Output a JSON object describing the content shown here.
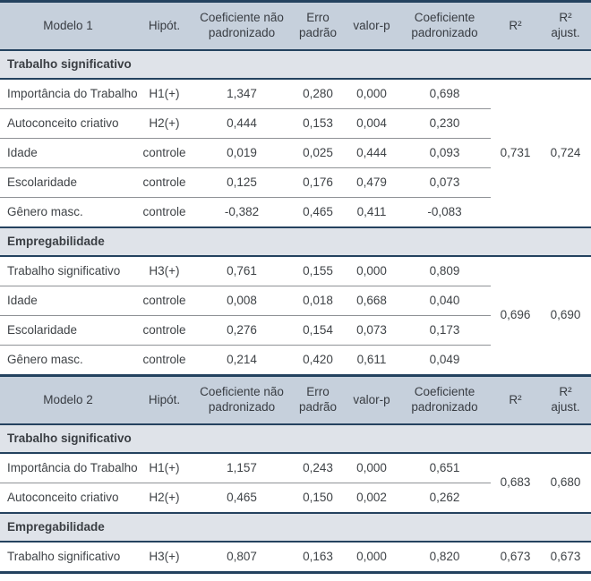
{
  "colors": {
    "border_navy": "#24425f",
    "header_bg": "#c6d0dc",
    "section_bg": "#dfe3e9",
    "row_separator": "#8f9296",
    "text": "#3f4347"
  },
  "column_headers": {
    "hipot": "Hipót.",
    "coef_nao_padronizado": "Coeficiente não padronizado",
    "erro_padrao": "Erro padrão",
    "valor_p": "valor-p",
    "coef_padronizado": "Coeficiente padronizado",
    "r2": "R²",
    "r2_ajust": "R² ajust."
  },
  "model1": {
    "title": "Modelo 1",
    "sections": [
      {
        "name": "Trabalho significativo",
        "r2": "0,731",
        "r2_ajust": "0,724",
        "rows": [
          {
            "label": "Importância do Trabalho",
            "hipot": "H1(+)",
            "coef": "1,347",
            "erro": "0,280",
            "p": "0,000",
            "beta": "0,698"
          },
          {
            "label": "Autoconceito criativo",
            "hipot": "H2(+)",
            "coef": "0,444",
            "erro": "0,153",
            "p": "0,004",
            "beta": "0,230"
          },
          {
            "label": "Idade",
            "hipot": "controle",
            "coef": "0,019",
            "erro": "0,025",
            "p": "0,444",
            "beta": "0,093"
          },
          {
            "label": "Escolaridade",
            "hipot": "controle",
            "coef": "0,125",
            "erro": "0,176",
            "p": "0,479",
            "beta": "0,073"
          },
          {
            "label": "Gênero masc.",
            "hipot": "controle",
            "coef": "-0,382",
            "erro": "0,465",
            "p": "0,411",
            "beta": "-0,083"
          }
        ]
      },
      {
        "name": "Empregabilidade",
        "r2": "0,696",
        "r2_ajust": "0,690",
        "rows": [
          {
            "label": "Trabalho significativo",
            "hipot": "H3(+)",
            "coef": "0,761",
            "erro": "0,155",
            "p": "0,000",
            "beta": "0,809"
          },
          {
            "label": "Idade",
            "hipot": "controle",
            "coef": "0,008",
            "erro": "0,018",
            "p": "0,668",
            "beta": "0,040"
          },
          {
            "label": "Escolaridade",
            "hipot": "controle",
            "coef": "0,276",
            "erro": "0,154",
            "p": "0,073",
            "beta": "0,173"
          },
          {
            "label": "Gênero masc.",
            "hipot": "controle",
            "coef": "0,214",
            "erro": "0,420",
            "p": "0,611",
            "beta": "0,049"
          }
        ]
      }
    ]
  },
  "model2": {
    "title": "Modelo 2",
    "sections": [
      {
        "name": "Trabalho significativo",
        "r2": "0,683",
        "r2_ajust": "0,680",
        "rows": [
          {
            "label": "Importância do Trabalho",
            "hipot": "H1(+)",
            "coef": "1,157",
            "erro": "0,243",
            "p": "0,000",
            "beta": "0,651"
          },
          {
            "label": "Autoconceito criativo",
            "hipot": "H2(+)",
            "coef": "0,465",
            "erro": "0,150",
            "p": "0,002",
            "beta": "0,262"
          }
        ]
      },
      {
        "name": "Empregabilidade",
        "r2": "0,673",
        "r2_ajust": "0,673",
        "rows": [
          {
            "label": "Trabalho significativo",
            "hipot": "H3(+)",
            "coef": "0,807",
            "erro": "0,163",
            "p": "0,000",
            "beta": "0,820"
          }
        ]
      }
    ]
  }
}
